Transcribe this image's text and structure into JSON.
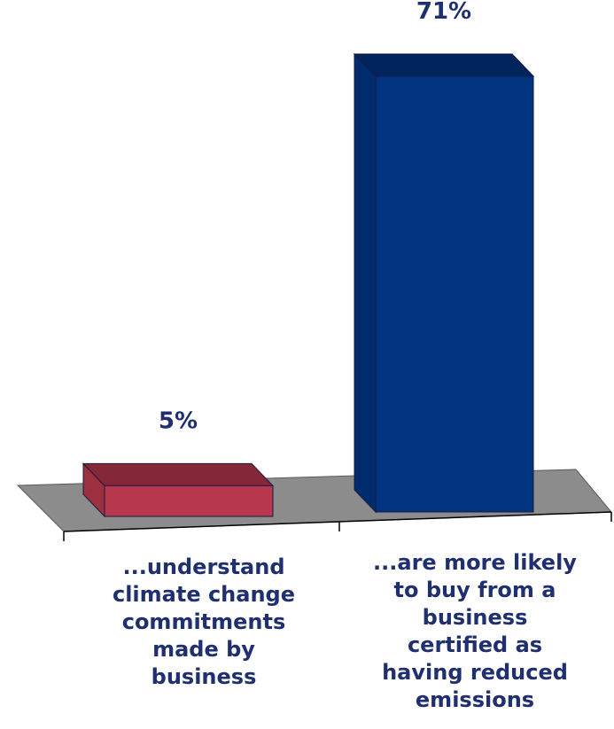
{
  "chart_data": {
    "type": "bar",
    "categories": [
      "...understand climate change commitments made by business",
      "...are more likely to buy from a business certified as having reduced emissions"
    ],
    "values": [
      5,
      71
    ],
    "value_labels": [
      "5%",
      "71%"
    ],
    "colors": [
      "#b7384d",
      "#003380"
    ],
    "ylim": [
      0,
      71
    ],
    "grid": false,
    "legend": "none"
  }
}
